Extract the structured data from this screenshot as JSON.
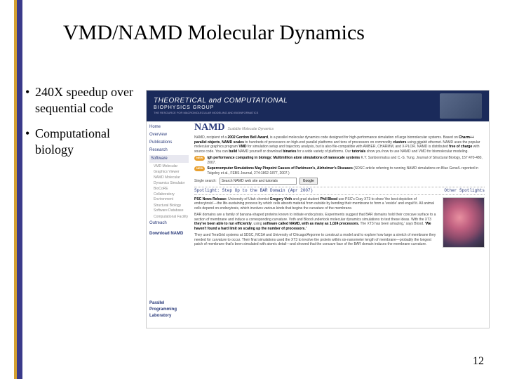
{
  "accent_bars": [
    "#d4a030",
    "#3a3a8a",
    "#3a3a8a"
  ],
  "title": "VMD/NAMD Molecular Dynamics",
  "bullets": [
    "240X speedup over sequential code",
    "Computational biology"
  ],
  "page_number": "12",
  "screenshot": {
    "banner": {
      "bg": "#1a2a5a",
      "title": "THEORETICAL and COMPUTATIONAL",
      "subtitle": "BIOPHYSICS GROUP",
      "tagline": "THE RESOURCE FOR MACROMOLECULAR MODELING AND BIOINFORMATICS"
    },
    "sidebar": {
      "top": [
        "Home",
        "Overview",
        "Publications",
        "Research"
      ],
      "software_header": "Software",
      "software_items": [
        "VMD Molecular Graphics Viewer",
        "NAMD Molecular Dynamics Simulator",
        "BioCoRE Collaboratory Environment",
        "Structural Biology Software Database",
        "Computational Facility"
      ],
      "bottom": [
        "Outreach"
      ],
      "download_label": "Download NAMD",
      "lab_label": "Parallel Programming Laboratory"
    },
    "content": {
      "logo": "NAMD",
      "tagline": "Scalable Molecular Dynamics",
      "intro": "NAMD, recipient of a 2002 Gordon Bell Award, is a parallel molecular dynamics code designed for high-performance simulation of large biomolecular systems. Based on Charm++ parallel objects, NAMD scales to hundreds of processors on high-end parallel platforms and tens of processors on commodity clusters using gigabit ethernet. NAMD uses the popular molecular graphics program VMD for simulation setup and trajectory analysis, but is also file-compatible with AMBER, CHARMM, and X-PLOR. NAMD is distributed free of charge with source code. You can build NAMD yourself or download binaries for a wide variety of platforms. Our tutorials show you how to use NAMD and VMD for biomolecular modeling.",
      "intro_bold": [
        "2002 Gordon Bell Award",
        "Charm++ parallel objects",
        "NAMD scales",
        "clusters",
        "VMD",
        "free of charge",
        "build",
        "binaries",
        "tutorials"
      ],
      "news_badge_bg": "#e8a030",
      "news": [
        {
          "title": "igh performance computing in biology: Multimillion atom simulations of nanoscale systems",
          "rest": "K.Y. Sanbonmatsu and C.-S. Tung. Journal of Structural Biology, 157:470-480, 2007."
        },
        {
          "title": "Supercomputer Simulations May Pinpoint Causes of Parkinson's, Alzheimer's Diseases",
          "rest": "(SDSC article referring to running NAMD simulations on Blue Gene/L reported in Tsigelny et al., FEBS Journal, 274:1862-1877, 2007.)"
        }
      ],
      "search_label": "Single search:",
      "search_value": "Search NAMD web site and tutorials",
      "search_button": "Google",
      "spotlight_left": "Spotlight: Step Up to the BAR Domain (Apr 2007)",
      "spotlight_right": "Other Spotlights",
      "press": {
        "headline": "PSC News Release:",
        "body1": "University of Utah chemist Gregory Voth and grad student Phil Blood use PSC's Cray XT3 to show 'the best depiction of endocytosis'—the life-sustaining process by which cells absorb material from outside by bending their membrane to form a 'vesicle' and engulf it. All animal cells depend on endocytosis, which involves various kinds that begins the curvature of the membrane.",
        "body2": "BAR domains are a family of banana-shaped proteins known to initiate endocytosis. Experiments suggest that BAR domains hold their concave surface to a section of membrane and induce a corresponding curvature. Voth and Blood undertook molecular dynamics simulations to test these ideas. With the XT3 they've been able to run efficiently, using software called NAMD, with as many as 1,024 processors. The XT3 has been amazing,' says Blood. 'We haven't found a hard limit on scaling up the number of processors.'",
        "body3": "They used TeraGrid systems at SDSC, NCSA and University of Chicago/Argonne to construct a model and to explore how large a stretch of membrane they needed for curvature to occur. Their final simulations used the XT3 to involve the protein within six-nanometer length of membrane—probably the longest patch of membrane that's been simulated with atomic detail—and showed that the concave face of the BAR domain induces the membrane curvature."
      }
    }
  }
}
